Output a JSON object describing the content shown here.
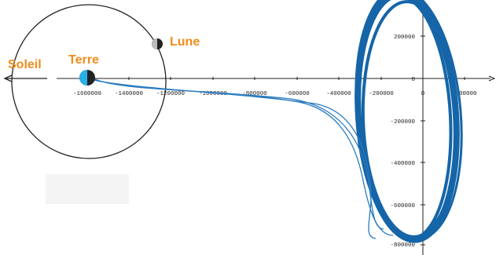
{
  "labels": {
    "sun": "Soleil",
    "earth": "Terre",
    "moon": "Lune"
  },
  "colors": {
    "label": "#f28c1c",
    "trajectory": "#2a7bbf",
    "trajectory_dark": "#1565a8",
    "orbit": "#222222",
    "earth_blue": "#2ab0e8",
    "moon_gray": "#bdbdbd"
  },
  "icons": {
    "earth": "earth-icon",
    "moon": "moon-icon",
    "sun_direction": "arrow-left-icon"
  },
  "chart_data": {
    "type": "line",
    "x_ticks": [
      "-1600000",
      "-1400000",
      "-1200000",
      "-1000000",
      "-800000",
      "-600000",
      "-400000",
      "-200000",
      "0",
      "200000"
    ],
    "y_ticks": [
      "200000",
      "0",
      "-200000",
      "-400000",
      "-600000",
      "-800000"
    ],
    "series": [
      {
        "x": [
          -1600000,
          -1450000,
          -1300000,
          -1100000,
          -900000,
          -700000,
          -550000,
          -450000,
          -400000,
          -370000,
          -330000,
          -270000
        ],
        "y": [
          0,
          -25000,
          -40000,
          -60000,
          -90000,
          -140000,
          -200000,
          -300000,
          -450000,
          -600000,
          -750000,
          -800000
        ]
      }
    ]
  }
}
